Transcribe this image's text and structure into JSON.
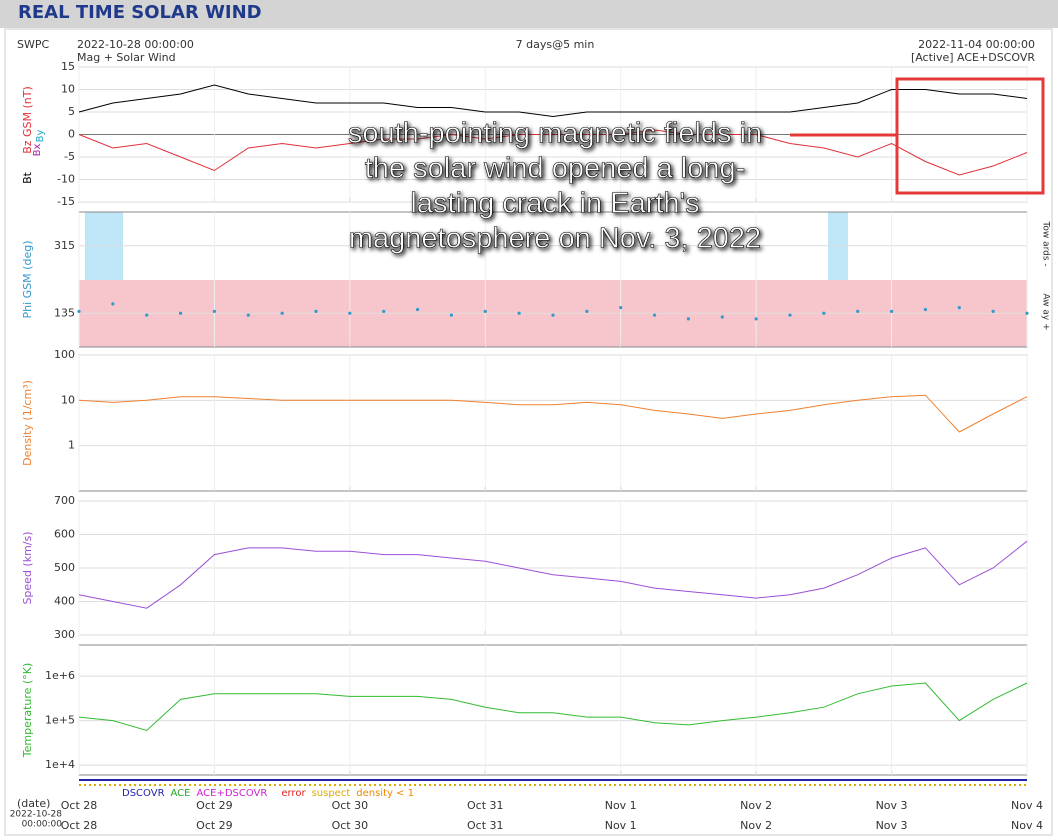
{
  "header": {
    "title": "REAL TIME SOLAR WIND"
  },
  "plot_header": {
    "source": "SWPC",
    "start": "2022-10-28 00:00:00",
    "subtitle": "Mag + Solar Wind",
    "span": "7 days@5 min",
    "end": "2022-11-04 00:00:00",
    "instrument": "[Active] ACE+DSCOVR"
  },
  "annotation": [
    "south-pointing magnetic fields in",
    "the solar wind opened a long-",
    "lasting crack in Earth's",
    "magnetosphere on Nov. 3, 2022"
  ],
  "chart_data": [
    {
      "type": "line",
      "ylabel": "Bz GSM (nT)",
      "extra_labels": [
        "Bx",
        "By"
      ],
      "ylim": [
        -15,
        15
      ],
      "yticks": [
        -15,
        -10,
        -5,
        0,
        5,
        10,
        15
      ],
      "grid": true,
      "xlim": [
        0,
        7
      ],
      "xticks": [
        {
          "value": 0,
          "label": "Oct 28"
        },
        {
          "value": 1,
          "label": "Oct 29"
        },
        {
          "value": 2,
          "label": "Oct 30"
        },
        {
          "value": 3,
          "label": "Oct 31"
        },
        {
          "value": 4,
          "label": "Nov 1"
        },
        {
          "value": 5,
          "label": "Nov 2"
        },
        {
          "value": 6,
          "label": "Nov 3"
        },
        {
          "value": 7,
          "label": "Nov 4"
        }
      ],
      "x": [
        0,
        0.25,
        0.5,
        0.75,
        1,
        1.25,
        1.5,
        1.75,
        2,
        2.25,
        2.5,
        2.75,
        3,
        3.25,
        3.5,
        3.75,
        4,
        4.25,
        4.5,
        4.75,
        5,
        5.25,
        5.5,
        5.75,
        6,
        6.25,
        6.5,
        6.75,
        7
      ],
      "series": [
        {
          "name": "Bt",
          "color": "#000000",
          "values": [
            5,
            7,
            8,
            9,
            11,
            9,
            8,
            7,
            7,
            7,
            6,
            6,
            5,
            5,
            4,
            5,
            5,
            5,
            5,
            5,
            5,
            5,
            6,
            7,
            10,
            10,
            9,
            9,
            8
          ]
        },
        {
          "name": "Bz GSM (nT)",
          "color": "#e0303a",
          "values": [
            0,
            -3,
            -2,
            -5,
            -8,
            -3,
            -2,
            -3,
            -2,
            -1,
            -1,
            0,
            -1,
            0,
            0,
            0,
            0,
            1,
            0,
            0,
            0,
            -2,
            -3,
            -5,
            -2,
            -6,
            -9,
            -7,
            -4
          ]
        }
      ]
    },
    {
      "type": "scatter",
      "ylabel": "Phi GSM (deg)",
      "side_labels": [
        "Tow ards -",
        "Aw ay +"
      ],
      "ylim": [
        45,
        405
      ],
      "yticks": [
        135,
        315
      ],
      "grid": true,
      "xlim": [
        0,
        7
      ],
      "xticks": [
        {
          "value": 0,
          "label": "Oct 28"
        },
        {
          "value": 1,
          "label": "Oct 29"
        },
        {
          "value": 2,
          "label": "Oct 30"
        },
        {
          "value": 3,
          "label": "Oct 31"
        },
        {
          "value": 4,
          "label": "Nov 1"
        },
        {
          "value": 5,
          "label": "Nov 2"
        },
        {
          "value": 6,
          "label": "Nov 3"
        },
        {
          "value": 7,
          "label": "Nov 4"
        }
      ],
      "x": [
        0,
        0.25,
        0.5,
        0.75,
        1,
        1.25,
        1.5,
        1.75,
        2,
        2.25,
        2.5,
        2.75,
        3,
        3.25,
        3.5,
        3.75,
        4,
        4.25,
        4.5,
        4.75,
        5,
        5.25,
        5.5,
        5.75,
        6,
        6.25,
        6.5,
        6.75,
        7
      ],
      "series": [
        {
          "name": "Phi GSM (deg)",
          "color": "#3399cc",
          "values": [
            140,
            160,
            130,
            135,
            140,
            130,
            135,
            140,
            135,
            140,
            145,
            130,
            140,
            135,
            130,
            140,
            150,
            130,
            120,
            125,
            120,
            130,
            135,
            140,
            140,
            145,
            150,
            140,
            135
          ]
        }
      ]
    },
    {
      "type": "line",
      "ylabel": "Density (1/cm³)",
      "log_scale": true,
      "ylim": [
        0.1,
        100
      ],
      "yticks": [
        1,
        10,
        100
      ],
      "grid": true,
      "xlim": [
        0,
        7
      ],
      "xticks": [
        {
          "value": 0,
          "label": "Oct 28"
        },
        {
          "value": 1,
          "label": "Oct 29"
        },
        {
          "value": 2,
          "label": "Oct 30"
        },
        {
          "value": 3,
          "label": "Oct 31"
        },
        {
          "value": 4,
          "label": "Nov 1"
        },
        {
          "value": 5,
          "label": "Nov 2"
        },
        {
          "value": 6,
          "label": "Nov 3"
        },
        {
          "value": 7,
          "label": "Nov 4"
        }
      ],
      "x": [
        0,
        0.25,
        0.5,
        0.75,
        1,
        1.25,
        1.5,
        1.75,
        2,
        2.25,
        2.5,
        2.75,
        3,
        3.25,
        3.5,
        3.75,
        4,
        4.25,
        4.5,
        4.75,
        5,
        5.25,
        5.5,
        5.75,
        6,
        6.25,
        6.5,
        6.75,
        7
      ],
      "series": [
        {
          "name": "Density (1/cm³)",
          "color": "#f08030",
          "values": [
            10,
            9,
            10,
            12,
            12,
            11,
            10,
            10,
            10,
            10,
            10,
            10,
            9,
            8,
            8,
            9,
            8,
            6,
            5,
            4,
            5,
            6,
            8,
            10,
            12,
            13,
            2,
            5,
            12
          ]
        }
      ]
    },
    {
      "type": "line",
      "ylabel": "Speed (km/s)",
      "ylim": [
        300,
        700
      ],
      "yticks": [
        300,
        400,
        500,
        600,
        700
      ],
      "grid": true,
      "xlim": [
        0,
        7
      ],
      "xticks": [
        {
          "value": 0,
          "label": "Oct 28"
        },
        {
          "value": 1,
          "label": "Oct 29"
        },
        {
          "value": 2,
          "label": "Oct 30"
        },
        {
          "value": 3,
          "label": "Oct 31"
        },
        {
          "value": 4,
          "label": "Nov 1"
        },
        {
          "value": 5,
          "label": "Nov 2"
        },
        {
          "value": 6,
          "label": "Nov 3"
        },
        {
          "value": 7,
          "label": "Nov 4"
        }
      ],
      "x": [
        0,
        0.25,
        0.5,
        0.75,
        1,
        1.25,
        1.5,
        1.75,
        2,
        2.25,
        2.5,
        2.75,
        3,
        3.25,
        3.5,
        3.75,
        4,
        4.25,
        4.5,
        4.75,
        5,
        5.25,
        5.5,
        5.75,
        6,
        6.25,
        6.5,
        6.75,
        7
      ],
      "series": [
        {
          "name": "Speed (km/s)",
          "color": "#9b4fd6",
          "values": [
            420,
            400,
            380,
            450,
            540,
            560,
            560,
            550,
            550,
            540,
            540,
            530,
            520,
            500,
            480,
            470,
            460,
            440,
            430,
            420,
            410,
            420,
            440,
            480,
            530,
            560,
            450,
            500,
            580
          ]
        }
      ]
    },
    {
      "type": "line",
      "ylabel": "Temperature (°K)",
      "log_scale": true,
      "ylim": [
        6000,
        5000000
      ],
      "yticks": [
        {
          "value": 10000,
          "label": "1e+4"
        },
        {
          "value": 100000,
          "label": "1e+5"
        },
        {
          "value": 1000000,
          "label": "1e+6"
        }
      ],
      "grid": true,
      "xlim": [
        0,
        7
      ],
      "xticks": [
        {
          "value": 0,
          "label": "Oct 28"
        },
        {
          "value": 1,
          "label": "Oct 29"
        },
        {
          "value": 2,
          "label": "Oct 30"
        },
        {
          "value": 3,
          "label": "Oct 31"
        },
        {
          "value": 4,
          "label": "Nov 1"
        },
        {
          "value": 5,
          "label": "Nov 2"
        },
        {
          "value": 6,
          "label": "Nov 3"
        },
        {
          "value": 7,
          "label": "Nov 4"
        }
      ],
      "x": [
        0,
        0.25,
        0.5,
        0.75,
        1,
        1.25,
        1.5,
        1.75,
        2,
        2.25,
        2.5,
        2.75,
        3,
        3.25,
        3.5,
        3.75,
        4,
        4.25,
        4.5,
        4.75,
        5,
        5.25,
        5.5,
        5.75,
        6,
        6.25,
        6.5,
        6.75,
        7
      ],
      "series": [
        {
          "name": "Temperature (°K)",
          "color": "#33bb33",
          "values": [
            120000,
            100000,
            60000,
            300000,
            400000,
            400000,
            400000,
            400000,
            350000,
            350000,
            350000,
            300000,
            200000,
            150000,
            150000,
            120000,
            120000,
            90000,
            80000,
            100000,
            120000,
            150000,
            200000,
            400000,
            600000,
            700000,
            100000,
            300000,
            700000
          ]
        }
      ]
    }
  ],
  "status_legend": [
    {
      "label": "DSCOVR",
      "color": "#2222aa"
    },
    {
      "label": "ACE",
      "color": "#22aa22"
    },
    {
      "label": "ACE+DSCOVR",
      "color": "#cc22cc"
    },
    {
      "label": "error",
      "color": "#dd2222"
    },
    {
      "label": "suspect",
      "color": "#ddaa00"
    },
    {
      "label": "density < 1",
      "color": "#ee8800"
    }
  ],
  "footer": {
    "date_label": "(date)",
    "start_date": "2022-10-28",
    "start_time": "00:00:00"
  }
}
